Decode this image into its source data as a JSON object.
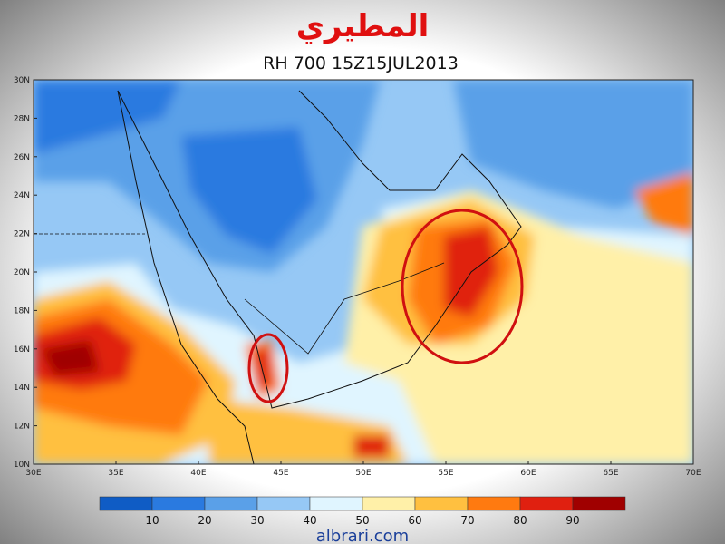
{
  "header": {
    "watermark": "المطيري",
    "title": "RH 700  15Z15JUL2013"
  },
  "map": {
    "lat_labels": [
      "10N",
      "12N",
      "14N",
      "16N",
      "18N",
      "20N",
      "22N",
      "24N",
      "26N",
      "28N",
      "30N"
    ],
    "lon_labels": [
      "30E",
      "35E",
      "40E",
      "45E",
      "50E",
      "55E",
      "60E",
      "65E",
      "70E"
    ]
  },
  "colorbar": {
    "labels": [
      "10",
      "20",
      "30",
      "40",
      "50",
      "60",
      "70",
      "80",
      "90"
    ]
  },
  "footer": {
    "site": "albrari.com"
  }
}
